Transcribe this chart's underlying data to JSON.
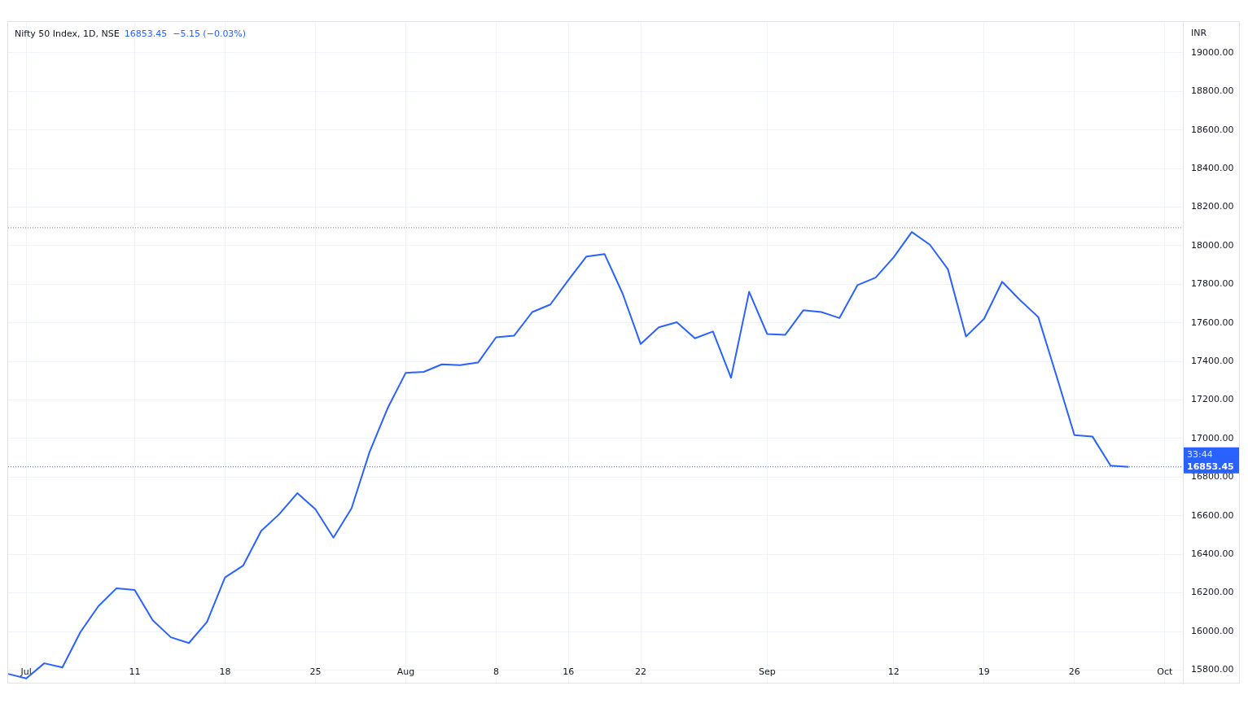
{
  "chart_data": {
    "type": "line",
    "title": "Nifty 50 Index, 1D, NSE",
    "subtitle": "16853.45  −5.15 (−0.03%)",
    "ylabel": "INR",
    "categories": [
      null,
      "Jul",
      null,
      null,
      null,
      null,
      null,
      "11",
      null,
      null,
      null,
      null,
      "18",
      null,
      null,
      null,
      null,
      "25",
      null,
      null,
      null,
      null,
      "Aug",
      null,
      null,
      null,
      null,
      "8",
      null,
      null,
      null,
      "16",
      null,
      null,
      null,
      "22",
      null,
      null,
      null,
      null,
      null,
      null,
      "Sep",
      null,
      null,
      null,
      null,
      null,
      null,
      "12",
      null,
      null,
      null,
      null,
      "19",
      null,
      null,
      null,
      null,
      "26",
      null,
      null,
      null,
      null,
      "Oct",
      null
    ],
    "series": [
      {
        "color": "#2962ff",
        "values": [
          15780,
          15756,
          15835,
          15813,
          15997,
          16132,
          16224,
          16215,
          16058,
          15970,
          15940,
          16049,
          16280,
          16341,
          16521,
          16608,
          16717,
          16634,
          16486,
          16638,
          16931,
          17158,
          17341,
          17346,
          17385,
          17381,
          17394,
          17525,
          17534,
          17656,
          17695,
          17822,
          17944,
          17957,
          17752,
          17490,
          17577,
          17603,
          17520,
          17555,
          17315,
          17761,
          17542,
          17538,
          17665,
          17656,
          17625,
          17796,
          17835,
          17940,
          18071,
          18005,
          17878,
          17529,
          17621,
          17813,
          17717,
          17630,
          17327,
          17018,
          17010,
          16860,
          16853.45,
          null,
          null,
          null
        ]
      }
    ],
    "ylim": [
      15730,
      19160
    ],
    "yticks": [
      {
        "value": 15800,
        "label": "15800.00"
      },
      {
        "value": 16000,
        "label": "16000.00"
      },
      {
        "value": 16200,
        "label": "16200.00"
      },
      {
        "value": 16400,
        "label": "16400.00"
      },
      {
        "value": 16600,
        "label": "16600.00"
      },
      {
        "value": 16800,
        "label": "16800.00"
      },
      {
        "value": 17000,
        "label": "17000.00"
      },
      {
        "value": 17200,
        "label": "17200.00"
      },
      {
        "value": 17400,
        "label": "17400.00"
      },
      {
        "value": 17600,
        "label": "17600.00"
      },
      {
        "value": 17800,
        "label": "17800.00"
      },
      {
        "value": 18000,
        "label": "18000.00"
      },
      {
        "value": 18200,
        "label": "18200.00"
      },
      {
        "value": 18400,
        "label": "18400.00"
      },
      {
        "value": 18600,
        "label": "18600.00"
      },
      {
        "value": 18800,
        "label": "18800.00"
      },
      {
        "value": 19000,
        "label": "19000.00"
      }
    ],
    "ref_lines": [
      {
        "axis": "y",
        "value": 18093,
        "color": "#787b86",
        "line_style": "dotted"
      },
      {
        "axis": "y",
        "value": 16853.45,
        "label": "16853.45",
        "color": "#2962ff",
        "line_style": "dotted"
      }
    ],
    "annotations": [
      "33:44"
    ],
    "grid": true,
    "legend": false,
    "marker": "none",
    "line_style": "solid"
  }
}
